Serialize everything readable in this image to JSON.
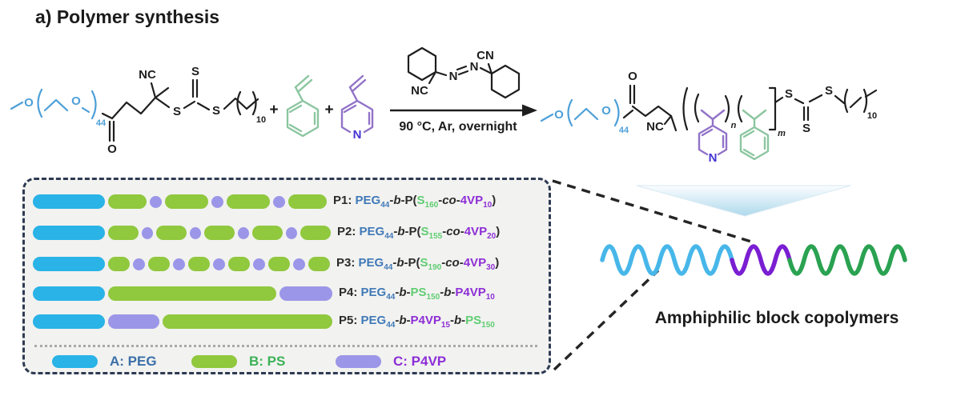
{
  "title": "a) Polymer synthesis",
  "scheme": {
    "atoms": {
      "O": "O",
      "S": "S",
      "N": "N",
      "NC": "NC",
      "CN": "CN",
      "plus": "+",
      "sub44": "44",
      "sub10": "10",
      "n": "n",
      "m": "m"
    },
    "conditions": "90 °C, Ar, overnight"
  },
  "box": {
    "rows": [
      {
        "id": "P1",
        "segments": [
          [
            "A",
            90
          ],
          [
            "B",
            48
          ],
          [
            "C",
            15
          ],
          [
            "B",
            54
          ],
          [
            "C",
            15
          ],
          [
            "B",
            54
          ],
          [
            "C",
            15
          ],
          [
            "B",
            48
          ]
        ],
        "label": [
          {
            "t": "P1: ",
            "c": "k"
          },
          {
            "t": "PEG",
            "c": "blue"
          },
          {
            "t": "44",
            "c": "blue",
            "s": 1
          },
          {
            "t": "-",
            "c": "k"
          },
          {
            "t": "b",
            "c": "k",
            "i": 1
          },
          {
            "t": "-P(",
            "c": "k"
          },
          {
            "t": "S",
            "c": "green"
          },
          {
            "t": "160",
            "c": "green",
            "s": 1
          },
          {
            "t": "-",
            "c": "k"
          },
          {
            "t": "co",
            "c": "k",
            "i": 1
          },
          {
            "t": "-",
            "c": "k"
          },
          {
            "t": "4VP",
            "c": "purple"
          },
          {
            "t": "10",
            "c": "purple",
            "s": 1
          },
          {
            "t": ")",
            "c": "k"
          }
        ]
      },
      {
        "id": "P2",
        "segments": [
          [
            "A",
            90
          ],
          [
            "B",
            38
          ],
          [
            "C",
            14
          ],
          [
            "B",
            38
          ],
          [
            "C",
            14
          ],
          [
            "B",
            38
          ],
          [
            "C",
            14
          ],
          [
            "B",
            38
          ],
          [
            "C",
            14
          ],
          [
            "B",
            38
          ]
        ],
        "label": [
          {
            "t": "P2: ",
            "c": "k"
          },
          {
            "t": "PEG",
            "c": "blue"
          },
          {
            "t": "44",
            "c": "blue",
            "s": 1
          },
          {
            "t": "-",
            "c": "k"
          },
          {
            "t": "b",
            "c": "k",
            "i": 1
          },
          {
            "t": "-P(",
            "c": "k"
          },
          {
            "t": "S",
            "c": "green"
          },
          {
            "t": "155",
            "c": "green",
            "s": 1
          },
          {
            "t": "-",
            "c": "k"
          },
          {
            "t": "co",
            "c": "k",
            "i": 1
          },
          {
            "t": "-",
            "c": "k"
          },
          {
            "t": "4VP",
            "c": "purple"
          },
          {
            "t": "20",
            "c": "purple",
            "s": 1
          },
          {
            "t": ")",
            "c": "k"
          }
        ]
      },
      {
        "id": "P3",
        "segments": [
          [
            "A",
            90
          ],
          [
            "B",
            27
          ],
          [
            "C",
            15
          ],
          [
            "B",
            27
          ],
          [
            "C",
            15
          ],
          [
            "B",
            27
          ],
          [
            "C",
            15
          ],
          [
            "B",
            27
          ],
          [
            "C",
            15
          ],
          [
            "B",
            27
          ],
          [
            "C",
            15
          ],
          [
            "B",
            27
          ]
        ],
        "label": [
          {
            "t": "P3: ",
            "c": "k"
          },
          {
            "t": "PEG",
            "c": "blue"
          },
          {
            "t": "44",
            "c": "blue",
            "s": 1
          },
          {
            "t": "-",
            "c": "k"
          },
          {
            "t": "b",
            "c": "k",
            "i": 1
          },
          {
            "t": "-P(",
            "c": "k"
          },
          {
            "t": "S",
            "c": "green"
          },
          {
            "t": "190",
            "c": "green",
            "s": 1
          },
          {
            "t": "-",
            "c": "k"
          },
          {
            "t": "co",
            "c": "k",
            "i": 1
          },
          {
            "t": "-",
            "c": "k"
          },
          {
            "t": "4VP",
            "c": "purple"
          },
          {
            "t": "30",
            "c": "purple",
            "s": 1
          },
          {
            "t": ")",
            "c": "k"
          }
        ]
      },
      {
        "id": "P4",
        "segments": [
          [
            "A",
            90
          ],
          [
            "B",
            210
          ],
          [
            "C",
            66
          ]
        ],
        "label": [
          {
            "t": "P4: ",
            "c": "k"
          },
          {
            "t": "PEG",
            "c": "blue"
          },
          {
            "t": "44",
            "c": "blue",
            "s": 1
          },
          {
            "t": "-",
            "c": "k"
          },
          {
            "t": "b",
            "c": "k",
            "i": 1
          },
          {
            "t": "-",
            "c": "k"
          },
          {
            "t": "PS",
            "c": "green"
          },
          {
            "t": "150",
            "c": "green",
            "s": 1
          },
          {
            "t": "-",
            "c": "k"
          },
          {
            "t": "b",
            "c": "k",
            "i": 1
          },
          {
            "t": "-",
            "c": "k"
          },
          {
            "t": "P4VP",
            "c": "purple"
          },
          {
            "t": "10",
            "c": "purple",
            "s": 1
          }
        ]
      },
      {
        "id": "P5",
        "segments": [
          [
            "A",
            90
          ],
          [
            "C",
            64
          ],
          [
            "B",
            212
          ]
        ],
        "label": [
          {
            "t": "P5: ",
            "c": "k"
          },
          {
            "t": "PEG",
            "c": "blue"
          },
          {
            "t": "44",
            "c": "blue",
            "s": 1
          },
          {
            "t": "-",
            "c": "k"
          },
          {
            "t": "b",
            "c": "k",
            "i": 1
          },
          {
            "t": "-",
            "c": "k"
          },
          {
            "t": "P4VP",
            "c": "purple"
          },
          {
            "t": "15",
            "c": "purple",
            "s": 1
          },
          {
            "t": "-",
            "c": "k"
          },
          {
            "t": "b",
            "c": "k",
            "i": 1
          },
          {
            "t": "-",
            "c": "k"
          },
          {
            "t": "PS",
            "c": "green"
          },
          {
            "t": "150",
            "c": "green",
            "s": 1
          }
        ]
      }
    ],
    "legend": [
      {
        "label": "A: PEG",
        "block": "A",
        "cls": "leg-a"
      },
      {
        "label": "B: PS",
        "block": "B",
        "cls": "leg-b"
      },
      {
        "label": "C: P4VP",
        "block": "C",
        "cls": "leg-c"
      }
    ]
  },
  "callout": {
    "caption": "Amphiphilic block copolymers"
  },
  "colors": {
    "peg-block": "#29b3e7",
    "ps-block": "#90c83e",
    "p4vp-block": "#9b96e8",
    "peg-text": "#4079b8",
    "s-text": "#5fcd72",
    "p4vp-text": "#8e2fd6",
    "ink": "#1e1e1e",
    "struct-blue": "#4d9fd8",
    "struct-green": "#8cc6a0",
    "struct-purple": "#9273c8",
    "pyridine-n": "#4335d2",
    "wave-blue": "#47b7e9",
    "wave-purple": "#7a1ed2",
    "wave-green": "#2aa251",
    "legend-a": "#3a6fa8",
    "legend-b": "#3cb257",
    "legend-c": "#8c2fd8",
    "box-border": "#2e3a52",
    "triangle-blue": "#aed9ec"
  }
}
